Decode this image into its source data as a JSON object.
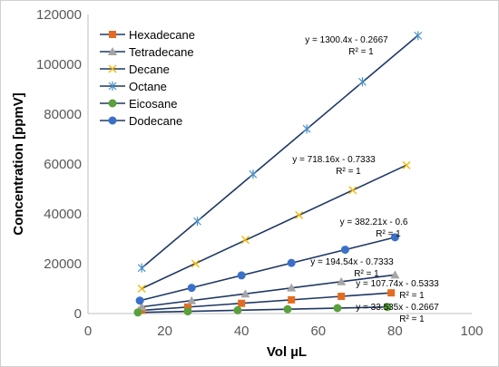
{
  "chart_data": {
    "type": "scatter",
    "xlabel": "Vol µL",
    "ylabel": "Concentration [ppmV]",
    "xlim": [
      0,
      100
    ],
    "ylim": [
      0,
      120000
    ],
    "xticks": [
      0,
      20,
      40,
      60,
      80,
      100
    ],
    "yticks": [
      0,
      20000,
      40000,
      60000,
      80000,
      100000,
      120000
    ],
    "grid": false,
    "legend_position": "top-left",
    "series": [
      {
        "name": "Hexadecane",
        "color": "#e46c20",
        "marker": "square",
        "x": [
          14,
          26,
          40,
          53,
          66,
          79
        ],
        "y": [
          1300,
          2600,
          4100,
          5500,
          6900,
          8300
        ],
        "equation": "y = 107.74x - 0.5333",
        "r2": "R² = 1"
      },
      {
        "name": "Tetradecane",
        "color": "#a5a5a5",
        "marker": "triangle",
        "x": [
          14,
          27,
          41,
          53,
          66,
          80
        ],
        "y": [
          2700,
          5200,
          7900,
          10300,
          12800,
          15500
        ],
        "equation": "y = 194.54x - 0.7333",
        "r2": "R² = 1"
      },
      {
        "name": "Decane",
        "color": "#f5b800",
        "marker": "x",
        "x": [
          14,
          28,
          41,
          55,
          69,
          83
        ],
        "y": [
          10000,
          20000,
          29600,
          39500,
          49500,
          59500
        ],
        "equation": "y = 718.16x - 0.7333",
        "r2": "R² = 1"
      },
      {
        "name": "Octane",
        "color": "#4a90c8",
        "marker": "star",
        "x": [
          14,
          28.5,
          43,
          57,
          71.5,
          86
        ],
        "y": [
          18300,
          37000,
          55900,
          74100,
          93000,
          111500
        ],
        "equation": "y = 1300.4x - 0.2667",
        "r2": "R² = 1"
      },
      {
        "name": "Eicosane",
        "color": "#5aa03c",
        "marker": "circle",
        "x": [
          13,
          26,
          39,
          52,
          65,
          78
        ],
        "y": [
          440,
          870,
          1310,
          1740,
          2180,
          2620
        ],
        "equation": "y = 33.535x - 0.2667",
        "r2": "R² = 1"
      },
      {
        "name": "Dodecane",
        "color": "#3a70c8",
        "marker": "circle",
        "x": [
          13.5,
          27,
          40,
          53,
          67,
          80
        ],
        "y": [
          5200,
          10300,
          15300,
          20300,
          25600,
          30600
        ],
        "equation": "y = 382.21x - 0.6",
        "r2": "R² = 1"
      }
    ]
  }
}
